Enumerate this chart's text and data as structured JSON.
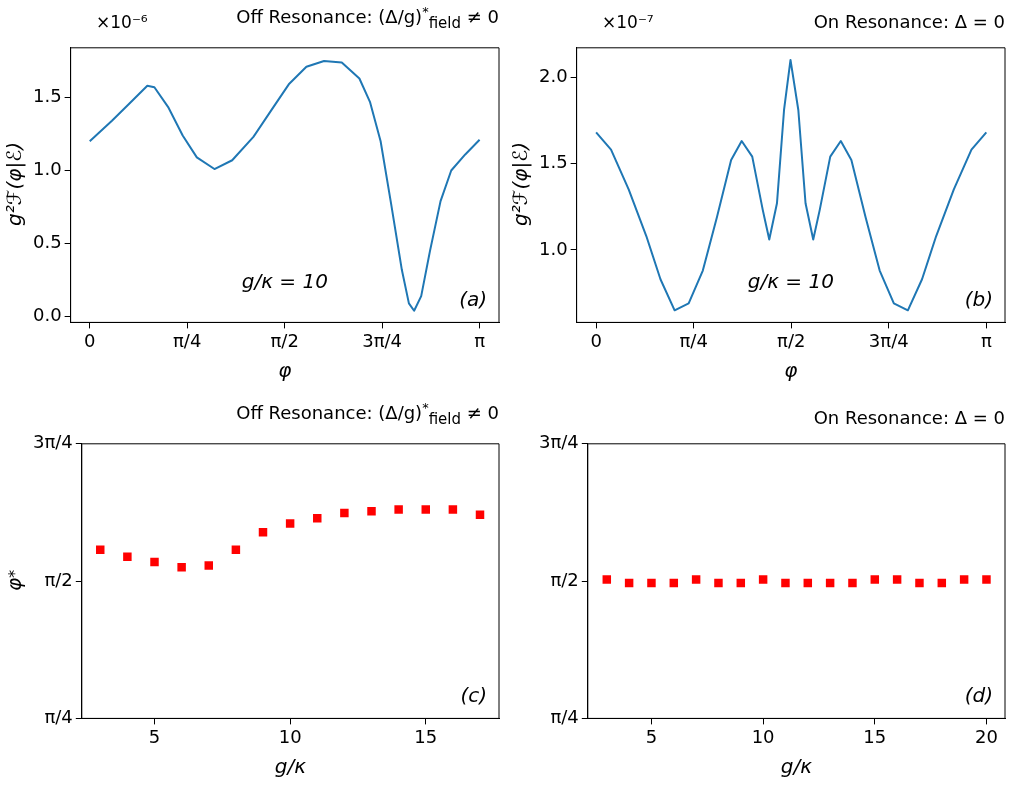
{
  "chart_data": [
    {
      "type": "line",
      "title": "Off Resonance: (Δ/g)$^{*}$$_{field}$ ≠ 0",
      "xlabel": "φ",
      "ylabel": "g²ℱ(φ|ℰ)",
      "annotations": [
        "×10⁻⁶",
        "g/κ = 10",
        "(a)"
      ],
      "xlim": [
        -0.154,
        3.298
      ],
      "ylim": [
        -0.04,
        1.84
      ],
      "xticks": [
        {
          "value": 0,
          "label": "0"
        },
        {
          "value": 0.7854,
          "label": "π/4"
        },
        {
          "value": 1.5708,
          "label": "π/2"
        },
        {
          "value": 2.3562,
          "label": "3π/4"
        },
        {
          "value": 3.1416,
          "label": "π"
        }
      ],
      "yticks": [
        {
          "value": 0,
          "label": "0.0"
        },
        {
          "value": 0.5,
          "label": "0.5"
        },
        {
          "value": 1,
          "label": "1.0"
        },
        {
          "value": 1.5,
          "label": "1.5"
        }
      ],
      "series": [
        {
          "color": "#1f77b4",
          "x": [
            0,
            0.179,
            0.322,
            0.464,
            0.521,
            0.635,
            0.749,
            0.863,
            1.005,
            1.148,
            1.319,
            1.461,
            1.604,
            1.746,
            1.888,
            2.031,
            2.173,
            2.258,
            2.344,
            2.429,
            2.515,
            2.572,
            2.614,
            2.671,
            2.742,
            2.827,
            2.913,
            3.026,
            3.1416
          ],
          "values": [
            1.2,
            1.34,
            1.46,
            1.58,
            1.57,
            1.43,
            1.24,
            1.09,
            1.01,
            1.07,
            1.23,
            1.41,
            1.59,
            1.71,
            1.75,
            1.74,
            1.63,
            1.47,
            1.2,
            0.77,
            0.32,
            0.09,
            0.04,
            0.14,
            0.45,
            0.79,
            1.0,
            1.11,
            1.21
          ]
        }
      ]
    },
    {
      "type": "line",
      "title": "On Resonance: Δ = 0",
      "xlabel": "φ",
      "ylabel": "g²ℱ(φ|ℰ)",
      "annotations": [
        "×10⁻⁷",
        "g/κ = 10",
        "(b)"
      ],
      "xlim": [
        -0.157,
        3.292
      ],
      "ylim": [
        0.58,
        2.17
      ],
      "xticks": [
        {
          "value": 0,
          "label": "0"
        },
        {
          "value": 0.7854,
          "label": "π/4"
        },
        {
          "value": 1.5708,
          "label": "π/2"
        },
        {
          "value": 2.3562,
          "label": "3π/4"
        },
        {
          "value": 3.1416,
          "label": "π"
        }
      ],
      "yticks": [
        {
          "value": 1,
          "label": "1.0"
        },
        {
          "value": 1.5,
          "label": "1.5"
        },
        {
          "value": 2,
          "label": "2.0"
        }
      ],
      "series": [
        {
          "color": "#1f77b4",
          "x": [
            0,
            0.12,
            0.262,
            0.404,
            0.518,
            0.632,
            0.745,
            0.859,
            0.973,
            1.087,
            1.172,
            1.257,
            1.342,
            1.394,
            1.456,
            1.513,
            1.565,
            1.628,
            1.686,
            1.748,
            1.8,
            1.885,
            1.97,
            2.055,
            2.169,
            2.283,
            2.397,
            2.51,
            2.624,
            2.738,
            2.88,
            3.022,
            3.1416
          ],
          "values": [
            1.68,
            1.58,
            1.35,
            1.08,
            0.83,
            0.65,
            0.69,
            0.88,
            1.19,
            1.52,
            1.63,
            1.54,
            1.23,
            1.06,
            1.27,
            1.81,
            2.1,
            1.81,
            1.27,
            1.06,
            1.23,
            1.54,
            1.63,
            1.52,
            1.19,
            0.88,
            0.69,
            0.65,
            0.83,
            1.08,
            1.35,
            1.58,
            1.68
          ]
        }
      ]
    },
    {
      "type": "scatter",
      "title": "Off Resonance: (Δ/g)$^{*}$$_{field}$ ≠ 0",
      "xlabel": "g/κ",
      "ylabel": "φ$^{*}$",
      "marker": "square",
      "annotations": [
        "(c)"
      ],
      "xlim": [
        2.32,
        17.7
      ],
      "ylim": [
        0.7854,
        2.3562
      ],
      "xticks": [
        5,
        10,
        15
      ],
      "yticks": [
        {
          "value": 0.7854,
          "label": "π/4"
        },
        {
          "value": 1.5708,
          "label": "π/2"
        },
        {
          "value": 2.3562,
          "label": "3π/4"
        }
      ],
      "x": [
        3,
        4,
        5,
        6,
        7,
        8,
        9,
        10,
        11,
        12,
        13,
        14,
        15,
        16,
        17
      ],
      "series": [
        {
          "color": "#ff0000",
          "values": [
            1.75,
            1.71,
            1.68,
            1.65,
            1.66,
            1.75,
            1.85,
            1.9,
            1.93,
            1.96,
            1.97,
            1.98,
            1.98,
            1.98,
            1.95
          ]
        }
      ]
    },
    {
      "type": "scatter",
      "title": "On Resonance: Δ = 0",
      "xlabel": "g/κ",
      "marker": "square",
      "annotations": [
        "(d)"
      ],
      "xlim": [
        2.15,
        20.83
      ],
      "ylim": [
        0.7854,
        2.3562
      ],
      "xticks": [
        5,
        10,
        15,
        20
      ],
      "yticks": [
        {
          "value": 0.7854,
          "label": "π/4"
        },
        {
          "value": 1.5708,
          "label": "π/2"
        },
        {
          "value": 2.3562,
          "label": "3π/4"
        }
      ],
      "x": [
        3,
        4,
        5,
        6,
        7,
        8,
        9,
        10,
        11,
        12,
        13,
        14,
        15,
        16,
        17,
        18,
        19,
        20
      ],
      "series": [
        {
          "color": "#ff0000",
          "values": [
            1.58,
            1.56,
            1.56,
            1.56,
            1.58,
            1.56,
            1.56,
            1.58,
            1.56,
            1.56,
            1.56,
            1.56,
            1.58,
            1.58,
            1.56,
            1.56,
            1.58,
            1.58
          ]
        }
      ]
    }
  ]
}
